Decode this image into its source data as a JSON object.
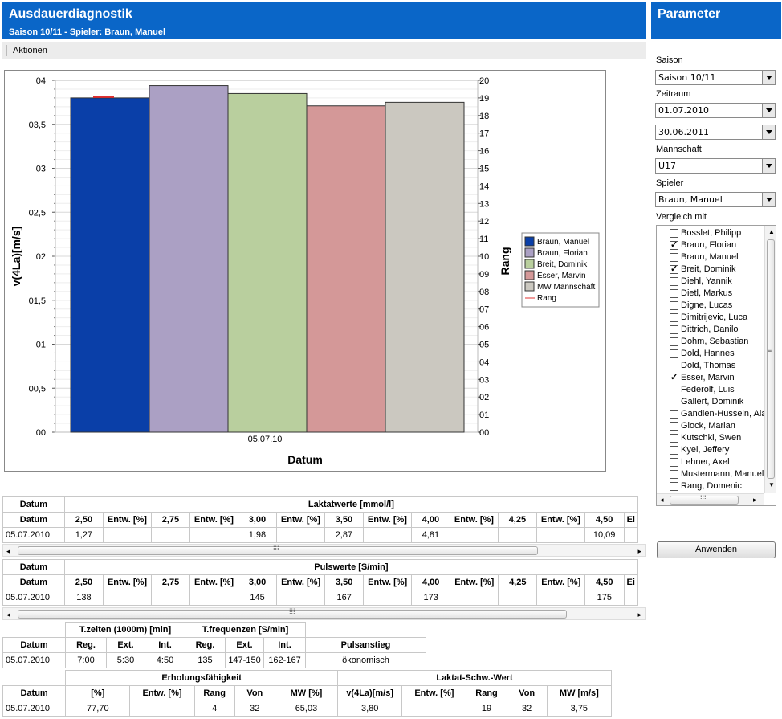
{
  "header": {
    "title": "Ausdauerdiagnostik",
    "subtitle": "Saison 10/11 - Spieler: Braun, Manuel"
  },
  "toolbar": {
    "aktionen": "Aktionen"
  },
  "chart_data": {
    "type": "bar",
    "categories": [
      "05.07.10"
    ],
    "xlabel": "Datum",
    "ylabel": "v(4La)[m/s]",
    "y2label": "Rang",
    "ylim": [
      0,
      4
    ],
    "y2lim": [
      0,
      20
    ],
    "yticks": [
      "00",
      "00,5",
      "01",
      "01,5",
      "02",
      "02,5",
      "03",
      "03,5",
      "04"
    ],
    "y2ticks": [
      "00",
      "01",
      "02",
      "03",
      "04",
      "05",
      "06",
      "07",
      "08",
      "09",
      "10",
      "11",
      "12",
      "13",
      "14",
      "15",
      "16",
      "17",
      "18",
      "19",
      "20"
    ],
    "grid": true,
    "legend_position": "right",
    "series": [
      {
        "name": "Braun, Manuel",
        "values": [
          3.8
        ],
        "color": "#0a3fa8"
      },
      {
        "name": "Braun, Florian",
        "values": [
          3.94
        ],
        "color": "#aba0c4"
      },
      {
        "name": "Breit, Dominik",
        "values": [
          3.85
        ],
        "color": "#b9cf9e"
      },
      {
        "name": "Esser, Marvin",
        "values": [
          3.71
        ],
        "color": "#d49898"
      },
      {
        "name": "MW Mannschaft",
        "values": [
          3.75
        ],
        "color": "#cbc8c0"
      },
      {
        "name": "Rang",
        "values": [
          19
        ],
        "color": "#e03030"
      }
    ]
  },
  "params": {
    "title": "Parameter",
    "saison_label": "Saison",
    "saison_value": "Saison 10/11",
    "zeitraum_label": "Zeitraum",
    "von_value": "01.07.2010",
    "bis_value": "30.06.2011",
    "mannschaft_label": "Mannschaft",
    "mannschaft_value": "U17",
    "spieler_label": "Spieler",
    "spieler_value": "Braun, Manuel",
    "vergleich_label": "Vergleich mit",
    "apply": "Anwenden",
    "players": [
      {
        "name": "Bosslet, Philipp",
        "checked": false
      },
      {
        "name": "Braun, Florian",
        "checked": true
      },
      {
        "name": "Braun, Manuel",
        "checked": false
      },
      {
        "name": "Breit, Dominik",
        "checked": true
      },
      {
        "name": "Diehl, Yannik",
        "checked": false
      },
      {
        "name": "Dietl, Markus",
        "checked": false
      },
      {
        "name": "Digne, Lucas",
        "checked": false
      },
      {
        "name": "Dimitrijevic, Luca",
        "checked": false
      },
      {
        "name": "Dittrich, Danilo",
        "checked": false
      },
      {
        "name": "Dohm, Sebastian",
        "checked": false
      },
      {
        "name": "Dold, Hannes",
        "checked": false
      },
      {
        "name": "Dold, Thomas",
        "checked": false
      },
      {
        "name": "Esser, Marvin",
        "checked": true
      },
      {
        "name": "Federolf, Luis",
        "checked": false
      },
      {
        "name": "Gallert, Dominik",
        "checked": false
      },
      {
        "name": "Gandien-Hussein, Ala",
        "checked": false
      },
      {
        "name": "Glock, Marian",
        "checked": false
      },
      {
        "name": "Kutschki, Swen",
        "checked": false
      },
      {
        "name": "Kyei, Jeffery",
        "checked": false
      },
      {
        "name": "Lehner, Axel",
        "checked": false
      },
      {
        "name": "Mustermann, Manuel",
        "checked": false
      },
      {
        "name": "Rang, Domenic",
        "checked": false
      }
    ]
  },
  "laktat": {
    "datum": "Datum",
    "group": "Laktatwerte [mmol/l]",
    "cols": [
      "2,50",
      "Entw. [%]",
      "2,75",
      "Entw. [%]",
      "3,00",
      "Entw. [%]",
      "3,50",
      "Entw. [%]",
      "4,00",
      "Entw. [%]",
      "4,25",
      "Entw. [%]",
      "4,50",
      "Ei"
    ],
    "row": [
      "05.07.2010",
      "1,27",
      "",
      "",
      "",
      "1,98",
      "",
      "2,87",
      "",
      "4,81",
      "",
      "",
      "",
      "10,09",
      ""
    ]
  },
  "puls": {
    "datum": "Datum",
    "group": "Pulswerte [S/min]",
    "cols": [
      "2,50",
      "Entw. [%]",
      "2,75",
      "Entw. [%]",
      "3,00",
      "Entw. [%]",
      "3,50",
      "Entw. [%]",
      "4,00",
      "Entw. [%]",
      "4,25",
      "Entw. [%]",
      "4,50",
      "Ei"
    ],
    "row": [
      "05.07.2010",
      "138",
      "",
      "",
      "",
      "145",
      "",
      "167",
      "",
      "173",
      "",
      "",
      "",
      "175",
      ""
    ]
  },
  "tzeiten": {
    "g1": "T.zeiten (1000m) [min]",
    "g2": "T.frequenzen [S/min]",
    "g3": "Pulsanstieg",
    "cols": [
      "Datum",
      "Reg.",
      "Ext.",
      "Int.",
      "Reg.",
      "Ext.",
      "Int."
    ],
    "row": [
      "05.07.2010",
      "7:00",
      "5:30",
      "4:50",
      "135",
      "147-150",
      "162-167",
      "ökonomisch"
    ]
  },
  "erholung": {
    "g1": "Erholungsfähigkeit",
    "g2": "Laktat-Schw.-Wert",
    "cols": [
      "Datum",
      "[%]",
      "Entw. [%]",
      "Rang",
      "Von",
      "MW [%]",
      "v(4La)[m/s]",
      "Entw. [%]",
      "Rang",
      "Von",
      "MW [m/s]"
    ],
    "row": [
      "05.07.2010",
      "77,70",
      "",
      "4",
      "32",
      "65,03",
      "3,80",
      "",
      "19",
      "32",
      "3,75"
    ]
  }
}
